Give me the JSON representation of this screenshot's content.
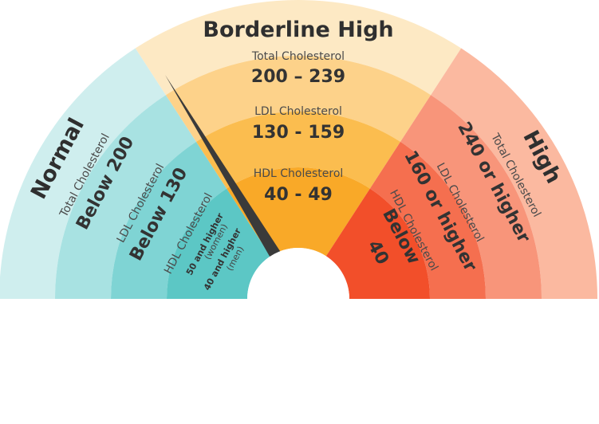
{
  "sections": {
    "normal": {
      "title": "Normal",
      "total_label": "Total Cholesterol",
      "total_value": "Below 200",
      "ldl_label": "LDL Cholesterol",
      "ldl_value": "Below 130",
      "hdl_label": "HDL Cholesterol",
      "hdl_women": "50 and higher",
      "women_note": "(women)",
      "hdl_men": "40 and higher",
      "men_note": "(men)"
    },
    "borderline": {
      "title": "Borderline High",
      "total_label": "Total Cholesterol",
      "total_value": "200 – 239",
      "ldl_label": "LDL Cholesterol",
      "ldl_value": "130 - 159",
      "hdl_label": "HDL Cholesterol",
      "hdl_value": "40 - 49"
    },
    "high": {
      "title": "High",
      "total_label": "Total Cholesterol",
      "total_value": "240 or higher",
      "ldl_label": "LDL Cholesterol",
      "ldl_value": "160 or higher",
      "hdl_label": "HDL Cholesterol",
      "hdl_value_line1": "Below",
      "hdl_value_line2": "40"
    }
  },
  "colors": {
    "normal_bands": [
      "#cfeeee",
      "#a8e2e2",
      "#7fd4d4",
      "#5cc7c5"
    ],
    "borderline_bands": [
      "#fde9c4",
      "#fdd28a",
      "#fbbd4f",
      "#f9a928"
    ],
    "high_bands": [
      "#fbb9a0",
      "#f8957a",
      "#f56f4f",
      "#f24f2a"
    ],
    "needle": "#3a3a3a",
    "hub": "#ffffff"
  }
}
